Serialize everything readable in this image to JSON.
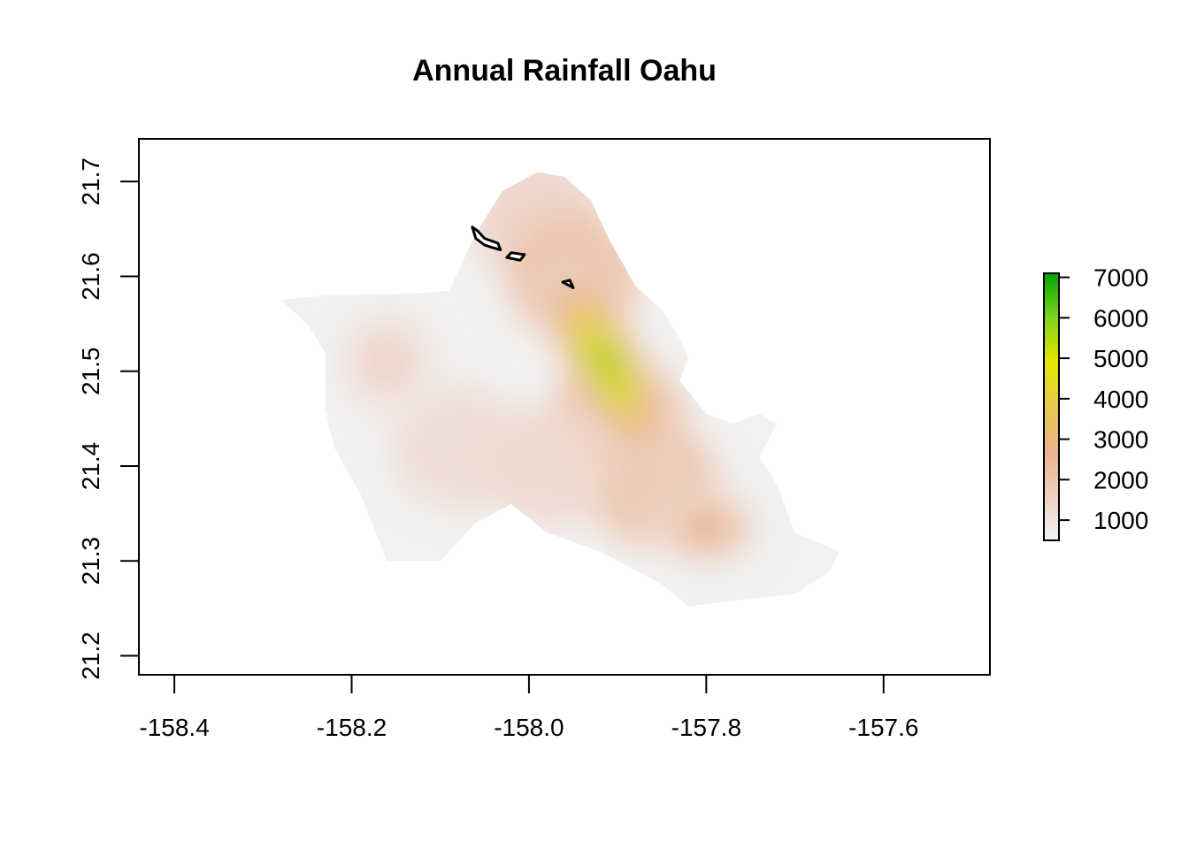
{
  "chart_data": {
    "type": "heatmap",
    "title": "Annual Rainfall Oahu",
    "xlim": [
      -158.44,
      -157.48
    ],
    "ylim": [
      21.18,
      21.745
    ],
    "x_ticks": [
      -158.4,
      -158.2,
      -158.0,
      -157.8,
      -157.6
    ],
    "x_tick_labels": [
      "-158.4",
      "-158.2",
      "-158.0",
      "-157.8",
      "-157.6"
    ],
    "y_ticks": [
      21.2,
      21.3,
      21.4,
      21.5,
      21.6,
      21.7
    ],
    "y_tick_labels": [
      "21.2",
      "21.3",
      "21.4",
      "21.5",
      "21.6",
      "21.7"
    ],
    "legend": {
      "position": "right",
      "range": [
        500,
        7100
      ],
      "ticks": [
        1000,
        2000,
        3000,
        4000,
        5000,
        6000,
        7000
      ],
      "tick_labels": [
        "1000",
        "2000",
        "3000",
        "4000",
        "5000",
        "6000",
        "7000"
      ],
      "colors": [
        "#f2f2f2",
        "#eed0c2",
        "#ebb28c",
        "#e8c850",
        "#e6e600",
        "#7fd21f",
        "#00a600"
      ]
    },
    "island_outline": [
      [
        -158.28,
        21.575
      ],
      [
        -158.23,
        21.58
      ],
      [
        -158.13,
        21.582
      ],
      [
        -158.09,
        21.585
      ],
      [
        -158.06,
        21.645
      ],
      [
        -158.03,
        21.69
      ],
      [
        -157.99,
        21.71
      ],
      [
        -157.96,
        21.705
      ],
      [
        -157.93,
        21.68
      ],
      [
        -157.91,
        21.64
      ],
      [
        -157.88,
        21.59
      ],
      [
        -157.85,
        21.565
      ],
      [
        -157.83,
        21.535
      ],
      [
        -157.82,
        21.515
      ],
      [
        -157.83,
        21.49
      ],
      [
        -157.8,
        21.455
      ],
      [
        -157.77,
        21.445
      ],
      [
        -157.74,
        21.455
      ],
      [
        -157.72,
        21.445
      ],
      [
        -157.74,
        21.41
      ],
      [
        -157.72,
        21.38
      ],
      [
        -157.7,
        21.33
      ],
      [
        -157.65,
        21.31
      ],
      [
        -157.66,
        21.29
      ],
      [
        -157.7,
        21.265
      ],
      [
        -157.77,
        21.258
      ],
      [
        -157.82,
        21.252
      ],
      [
        -157.85,
        21.275
      ],
      [
        -157.92,
        21.31
      ],
      [
        -157.98,
        21.33
      ],
      [
        -158.02,
        21.36
      ],
      [
        -158.06,
        21.34
      ],
      [
        -158.1,
        21.3
      ],
      [
        -158.16,
        21.3
      ],
      [
        -158.19,
        21.37
      ],
      [
        -158.22,
        21.42
      ],
      [
        -158.23,
        21.46
      ],
      [
        -158.23,
        21.52
      ],
      [
        -158.25,
        21.55
      ]
    ],
    "rainfall_peaks": [
      {
        "lon": -157.913,
        "lat": 21.508,
        "value": 7000,
        "sx": 0.022,
        "sy": 0.06
      },
      {
        "lon": -157.8,
        "lat": 21.335,
        "value": 3600,
        "sx": 0.03,
        "sy": 0.02
      },
      {
        "lon": -158.16,
        "lat": 21.51,
        "value": 1900,
        "sx": 0.03,
        "sy": 0.03
      }
    ],
    "outlined_areas": [
      [
        [
          -158.064,
          21.652
        ],
        [
          -158.06,
          21.64
        ],
        [
          -158.05,
          21.633
        ],
        [
          -158.04,
          21.63
        ],
        [
          -158.032,
          21.628
        ],
        [
          -158.035,
          21.635
        ],
        [
          -158.05,
          21.64
        ],
        [
          -158.058,
          21.648
        ]
      ],
      [
        [
          -158.025,
          21.62
        ],
        [
          -158.01,
          21.617
        ],
        [
          -158.005,
          21.623
        ],
        [
          -158.02,
          21.625
        ]
      ],
      [
        [
          -157.962,
          21.594
        ],
        [
          -157.95,
          21.588
        ],
        [
          -157.954,
          21.596
        ]
      ]
    ]
  }
}
